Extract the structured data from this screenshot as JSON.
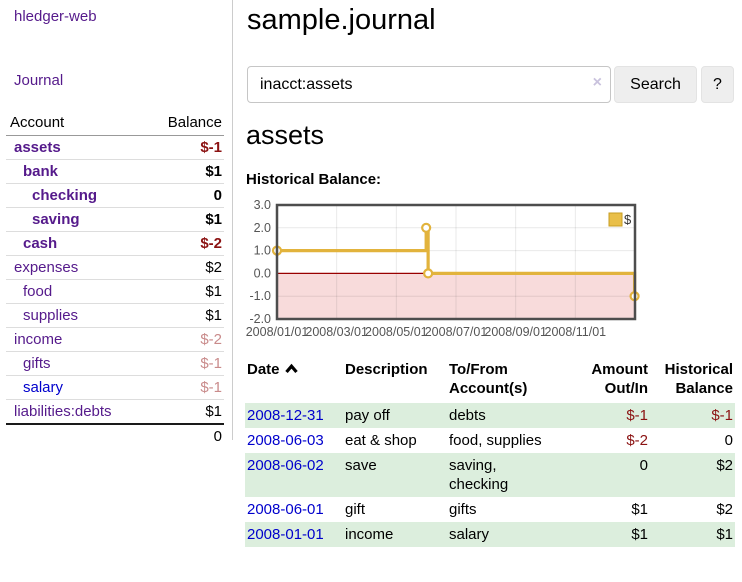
{
  "app": {
    "title": "hledger-web"
  },
  "sidebar": {
    "nav": {
      "journal_label": "Journal"
    },
    "accounts_table": {
      "headers": {
        "account": "Account",
        "balance": "Balance"
      },
      "rows": [
        {
          "name": "assets",
          "depth": 1,
          "bold": true,
          "balance": "$-1",
          "balance_style": "negative"
        },
        {
          "name": "bank",
          "depth": 2,
          "bold": true,
          "balance": "$1",
          "balance_style": "positive"
        },
        {
          "name": "checking",
          "depth": 3,
          "bold": true,
          "balance": "0",
          "balance_style": "positive"
        },
        {
          "name": "saving",
          "depth": 3,
          "bold": true,
          "balance": "$1",
          "balance_style": "positive"
        },
        {
          "name": "cash",
          "depth": 2,
          "bold": true,
          "balance": "$-2",
          "balance_style": "negative"
        },
        {
          "name": "expenses",
          "depth": 1,
          "bold": false,
          "balance": "$2",
          "balance_style": "positive"
        },
        {
          "name": "food",
          "depth": 2,
          "bold": false,
          "balance": "$1",
          "balance_style": "positive"
        },
        {
          "name": "supplies",
          "depth": 2,
          "bold": false,
          "balance": "$1",
          "balance_style": "positive"
        },
        {
          "name": "income",
          "depth": 1,
          "bold": false,
          "balance": "$-2",
          "balance_style": "negative-light"
        },
        {
          "name": "gifts",
          "depth": 2,
          "bold": false,
          "balance": "$-1",
          "balance_style": "negative-light"
        },
        {
          "name": "salary",
          "depth": 2,
          "bold": false,
          "link_style": "unvisited",
          "balance": "$-1",
          "balance_style": "negative-light"
        },
        {
          "name": "liabilities:debts",
          "depth": 1,
          "bold": false,
          "balance": "$1",
          "balance_style": "positive"
        }
      ],
      "total": "0"
    }
  },
  "main": {
    "page_title": "sample.journal",
    "search": {
      "value": "inacct:assets",
      "clear_icon": "×",
      "button_label": "Search",
      "help_label": "?"
    },
    "account_heading": "assets",
    "chart_label": "Historical Balance:"
  },
  "chart_data": {
    "type": "line",
    "step": true,
    "title": "Historical Balance",
    "series": [
      {
        "name": "$",
        "color": "#e2b33c",
        "points": [
          [
            "2008-01-01",
            1
          ],
          [
            "2008-06-01",
            2
          ],
          [
            "2008-06-03",
            0
          ],
          [
            "2008-12-31",
            -1
          ]
        ]
      }
    ],
    "x_range_dates": [
      "2008-01-01",
      "2009-01-01"
    ],
    "xtick_labels": [
      "2008/01/01",
      "2008/03/01",
      "2008/05/01",
      "2008/07/01",
      "2008/09/01",
      "2008/11/01"
    ],
    "xtick_months": [
      0,
      2,
      4,
      6,
      8,
      10
    ],
    "ylim": [
      -2,
      3
    ],
    "ytick_labels": [
      "3.0",
      "2.0",
      "1.0",
      "0.0",
      "-1.0",
      "-2.0"
    ],
    "yticks": [
      3,
      2,
      1,
      0,
      -1,
      -2
    ],
    "grid": true,
    "legend": {
      "label": "$",
      "position": "top-right"
    },
    "negative_region_fill": "#f8dbdb",
    "zero_line_color": "#990000",
    "border_color": "#4d4d4d"
  },
  "register_table": {
    "headers": {
      "date": "Date",
      "description": "Description",
      "accounts": "To/From Account(s)",
      "amount": "Amount Out/In",
      "balance": "Historical Balance"
    },
    "sort": {
      "column": "Date",
      "ascending": true
    },
    "rows": [
      {
        "date": "2008-12-31",
        "description": "pay off",
        "accounts": "debts",
        "amount": "$-1",
        "amount_style": "negative",
        "balance": "$-1",
        "balance_style": "negative",
        "shaded": true
      },
      {
        "date": "2008-06-03",
        "description": "eat & shop",
        "accounts": "food, supplies",
        "amount": "$-2",
        "amount_style": "negative",
        "balance": "0",
        "balance_style": "positive",
        "shaded": false
      },
      {
        "date": "2008-06-02",
        "description": "save",
        "accounts": "saving,\nchecking",
        "amount": "0",
        "amount_style": "positive",
        "balance": "$2",
        "balance_style": "positive",
        "shaded": true
      },
      {
        "date": "2008-06-01",
        "description": "gift",
        "accounts": "gifts",
        "amount": "$1",
        "amount_style": "positive",
        "balance": "$2",
        "balance_style": "positive",
        "shaded": false
      },
      {
        "date": "2008-01-01",
        "description": "income",
        "accounts": "salary",
        "amount": "$1",
        "amount_style": "positive",
        "balance": "$1",
        "balance_style": "positive",
        "shaded": true
      }
    ]
  },
  "colors": {
    "link_purple": "#551a8b",
    "link_blue": "#0000cc",
    "negative_red": "#8b1212",
    "negative_light_rose": "#c98b8b",
    "row_stripe_green": "#dceedd",
    "chart_gold": "#e2b33c",
    "chart_negative_pink": "#f8dbdb",
    "chart_zero_line": "#990000",
    "button_gray": "#eeeeee"
  }
}
